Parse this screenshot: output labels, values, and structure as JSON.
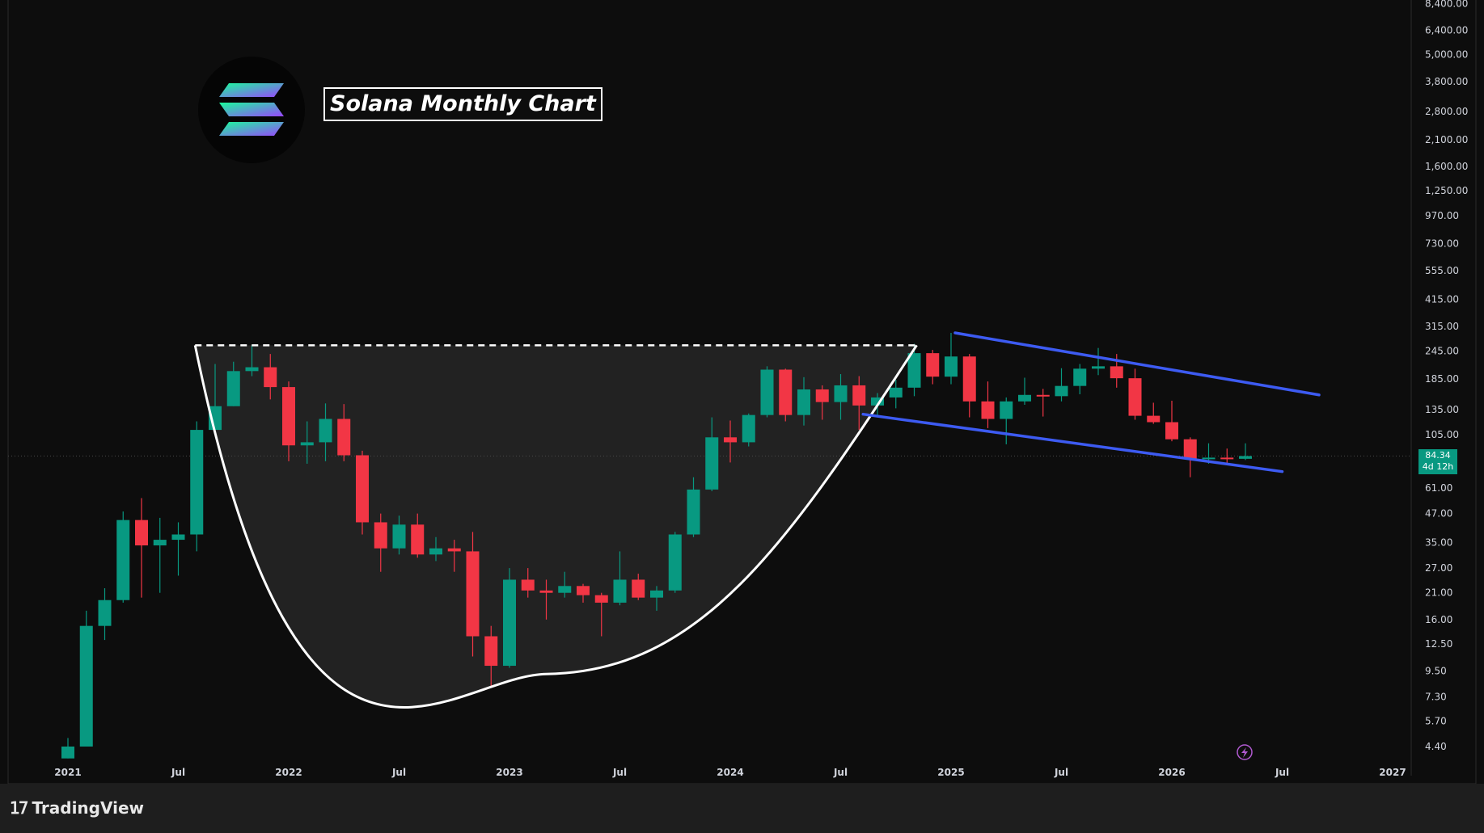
{
  "title": "Solana Monthly Chart",
  "brand": "TradingView",
  "price_label": {
    "value": "84.34",
    "countdown": "4d 12h"
  },
  "colors": {
    "up": "#089981",
    "down": "#f23645",
    "pattern": "#ffffff",
    "channel": "#3d5bf2",
    "background": "#0d0d0d"
  },
  "icons": {
    "logo": "solana-logo-icon",
    "brand": "tradingview-logo-icon",
    "flash": "lightning-icon"
  },
  "chart_data": {
    "type": "candlestick",
    "title": "Solana Monthly Chart",
    "y_scale": "log",
    "y_ticks": [
      "4.40",
      "5.70",
      "7.30",
      "9.50",
      "12.50",
      "16.00",
      "21.00",
      "27.00",
      "35.00",
      "47.00",
      "61.00",
      "105.00",
      "135.00",
      "185.00",
      "245.00",
      "315.00",
      "415.00",
      "555.00",
      "730.00",
      "970.00",
      "1,250.00",
      "1,600.00",
      "2,100.00",
      "2,800.00",
      "3,800.00",
      "5,000.00",
      "6,400.00",
      "8,400.00"
    ],
    "x_ticks": [
      "2021",
      "Jul",
      "2022",
      "Jul",
      "2023",
      "Jul",
      "2024",
      "Jul",
      "2025",
      "Jul",
      "2026",
      "Jul",
      "2027"
    ],
    "current_price": 84.34,
    "candles": [
      {
        "date": "2021-01",
        "o": 3.9,
        "h": 4.8,
        "l": 3.9,
        "c": 4.4
      },
      {
        "date": "2021-02",
        "o": 4.4,
        "h": 17.5,
        "l": 4.4,
        "c": 15.0
      },
      {
        "date": "2021-03",
        "o": 15.0,
        "h": 22.0,
        "l": 13.0,
        "c": 19.5
      },
      {
        "date": "2021-04",
        "o": 19.5,
        "h": 48.0,
        "l": 19.0,
        "c": 44.0
      },
      {
        "date": "2021-05",
        "o": 44.0,
        "h": 55.0,
        "l": 20.0,
        "c": 34.0
      },
      {
        "date": "2021-06",
        "o": 34.0,
        "h": 45.0,
        "l": 21.0,
        "c": 36.0
      },
      {
        "date": "2021-07",
        "o": 36.0,
        "h": 43.0,
        "l": 25.0,
        "c": 38.0
      },
      {
        "date": "2021-08",
        "o": 38.0,
        "h": 120.0,
        "l": 32.0,
        "c": 110.0
      },
      {
        "date": "2021-09",
        "o": 110.0,
        "h": 215.0,
        "l": 110.0,
        "c": 140.0
      },
      {
        "date": "2021-10",
        "o": 140.0,
        "h": 220.0,
        "l": 140.0,
        "c": 200.0
      },
      {
        "date": "2021-11",
        "o": 200.0,
        "h": 260.0,
        "l": 190.0,
        "c": 208.0
      },
      {
        "date": "2021-12",
        "o": 208.0,
        "h": 238.0,
        "l": 150.0,
        "c": 170.0
      },
      {
        "date": "2022-01",
        "o": 170.0,
        "h": 180.0,
        "l": 80.0,
        "c": 94.0
      },
      {
        "date": "2022-02",
        "o": 94.0,
        "h": 120.0,
        "l": 78.0,
        "c": 97.0
      },
      {
        "date": "2022-03",
        "o": 97.0,
        "h": 144.0,
        "l": 80.0,
        "c": 123.0
      },
      {
        "date": "2022-04",
        "o": 123.0,
        "h": 143.0,
        "l": 80.0,
        "c": 85.0
      },
      {
        "date": "2022-05",
        "o": 85.0,
        "h": 89.0,
        "l": 38.0,
        "c": 43.0
      },
      {
        "date": "2022-06",
        "o": 43.0,
        "h": 47.0,
        "l": 26.0,
        "c": 33.0
      },
      {
        "date": "2022-07",
        "o": 33.0,
        "h": 46.0,
        "l": 31.0,
        "c": 42.0
      },
      {
        "date": "2022-08",
        "o": 42.0,
        "h": 47.0,
        "l": 30.0,
        "c": 31.0
      },
      {
        "date": "2022-09",
        "o": 31.0,
        "h": 37.0,
        "l": 29.0,
        "c": 33.0
      },
      {
        "date": "2022-10",
        "o": 33.0,
        "h": 36.0,
        "l": 26.0,
        "c": 32.0
      },
      {
        "date": "2022-11",
        "o": 32.0,
        "h": 39.0,
        "l": 11.0,
        "c": 13.5
      },
      {
        "date": "2022-12",
        "o": 13.5,
        "h": 15.0,
        "l": 8.0,
        "c": 10.0
      },
      {
        "date": "2023-01",
        "o": 10.0,
        "h": 27.0,
        "l": 9.8,
        "c": 24.0
      },
      {
        "date": "2023-02",
        "o": 24.0,
        "h": 27.0,
        "l": 20.0,
        "c": 21.5
      },
      {
        "date": "2023-03",
        "o": 21.5,
        "h": 24.0,
        "l": 16.0,
        "c": 21.0
      },
      {
        "date": "2023-04",
        "o": 21.0,
        "h": 26.0,
        "l": 20.0,
        "c": 22.5
      },
      {
        "date": "2023-05",
        "o": 22.5,
        "h": 23.0,
        "l": 19.0,
        "c": 20.5
      },
      {
        "date": "2023-06",
        "o": 20.5,
        "h": 21.0,
        "l": 13.5,
        "c": 19.0
      },
      {
        "date": "2023-07",
        "o": 19.0,
        "h": 32.0,
        "l": 18.5,
        "c": 24.0
      },
      {
        "date": "2023-08",
        "o": 24.0,
        "h": 25.5,
        "l": 19.5,
        "c": 20.0
      },
      {
        "date": "2023-09",
        "o": 20.0,
        "h": 22.5,
        "l": 17.5,
        "c": 21.5
      },
      {
        "date": "2023-10",
        "o": 21.5,
        "h": 39.0,
        "l": 21.0,
        "c": 38.0
      },
      {
        "date": "2023-11",
        "o": 38.0,
        "h": 68.0,
        "l": 37.0,
        "c": 60.0
      },
      {
        "date": "2023-12",
        "o": 60.0,
        "h": 125.0,
        "l": 59.0,
        "c": 102.0
      },
      {
        "date": "2024-01",
        "o": 102.0,
        "h": 121.0,
        "l": 79.0,
        "c": 97.0
      },
      {
        "date": "2024-02",
        "o": 97.0,
        "h": 130.0,
        "l": 93.0,
        "c": 128.0
      },
      {
        "date": "2024-03",
        "o": 128.0,
        "h": 210.0,
        "l": 125.0,
        "c": 203.0
      },
      {
        "date": "2024-04",
        "o": 203.0,
        "h": 205.0,
        "l": 120.0,
        "c": 128.0
      },
      {
        "date": "2024-05",
        "o": 128.0,
        "h": 188.0,
        "l": 115.0,
        "c": 166.0
      },
      {
        "date": "2024-06",
        "o": 166.0,
        "h": 173.0,
        "l": 122.0,
        "c": 146.0
      },
      {
        "date": "2024-07",
        "o": 146.0,
        "h": 194.0,
        "l": 122.0,
        "c": 173.0
      },
      {
        "date": "2024-08",
        "o": 173.0,
        "h": 190.0,
        "l": 110.0,
        "c": 141.0
      },
      {
        "date": "2024-09",
        "o": 141.0,
        "h": 160.0,
        "l": 125.0,
        "c": 153.0
      },
      {
        "date": "2024-10",
        "o": 153.0,
        "h": 183.0,
        "l": 137.0,
        "c": 169.0
      },
      {
        "date": "2024-11",
        "o": 169.0,
        "h": 264.0,
        "l": 155.0,
        "c": 240.0
      },
      {
        "date": "2024-12",
        "o": 240.0,
        "h": 248.0,
        "l": 175.0,
        "c": 189.0
      },
      {
        "date": "2025-01",
        "o": 189.0,
        "h": 295.0,
        "l": 175.0,
        "c": 232.0
      },
      {
        "date": "2025-02",
        "o": 232.0,
        "h": 238.0,
        "l": 125.0,
        "c": 147.0
      },
      {
        "date": "2025-03",
        "o": 147.0,
        "h": 180.0,
        "l": 112.0,
        "c": 123.0
      },
      {
        "date": "2025-04",
        "o": 123.0,
        "h": 153.0,
        "l": 95.0,
        "c": 147.0
      },
      {
        "date": "2025-05",
        "o": 147.0,
        "h": 187.0,
        "l": 142.0,
        "c": 157.0
      },
      {
        "date": "2025-06",
        "o": 157.0,
        "h": 167.0,
        "l": 126.0,
        "c": 155.0
      },
      {
        "date": "2025-07",
        "o": 155.0,
        "h": 206.0,
        "l": 147.0,
        "c": 172.0
      },
      {
        "date": "2025-08",
        "o": 172.0,
        "h": 215.0,
        "l": 158.0,
        "c": 205.0
      },
      {
        "date": "2025-09",
        "o": 205.0,
        "h": 253.0,
        "l": 192.0,
        "c": 210.0
      },
      {
        "date": "2025-10",
        "o": 210.0,
        "h": 238.0,
        "l": 169.0,
        "c": 186.0
      },
      {
        "date": "2025-11",
        "o": 186.0,
        "h": 205.0,
        "l": 122.0,
        "c": 127.0
      },
      {
        "date": "2025-12",
        "o": 127.0,
        "h": 145.0,
        "l": 117.0,
        "c": 119.0
      },
      {
        "date": "2026-01",
        "o": 119.0,
        "h": 148.0,
        "l": 98.0,
        "c": 100.0
      },
      {
        "date": "2026-02",
        "o": 100.0,
        "h": 102.0,
        "l": 68.0,
        "c": 82.0
      },
      {
        "date": "2026-03",
        "o": 82.0,
        "h": 96.0,
        "l": 78.0,
        "c": 83.0
      },
      {
        "date": "2026-04",
        "o": 83.0,
        "h": 91.0,
        "l": 77.0,
        "c": 82.0
      },
      {
        "date": "2026-05",
        "o": 82.0,
        "h": 96.0,
        "l": 81.0,
        "c": 84.34
      }
    ],
    "annotations": [
      {
        "type": "cup",
        "rim_price": 260,
        "rim_start": "2021-08",
        "rim_end": "2024-11",
        "bottom_price": 9.2,
        "bottom_date": "2023-03"
      },
      {
        "type": "channel_upper",
        "start": {
          "date": "2025-01",
          "price": 295
        },
        "end": {
          "date": "2026-09",
          "price": 157
        }
      },
      {
        "type": "channel_lower",
        "start": {
          "date": "2024-08",
          "price": 129
        },
        "end": {
          "date": "2026-07",
          "price": 72
        }
      }
    ]
  }
}
